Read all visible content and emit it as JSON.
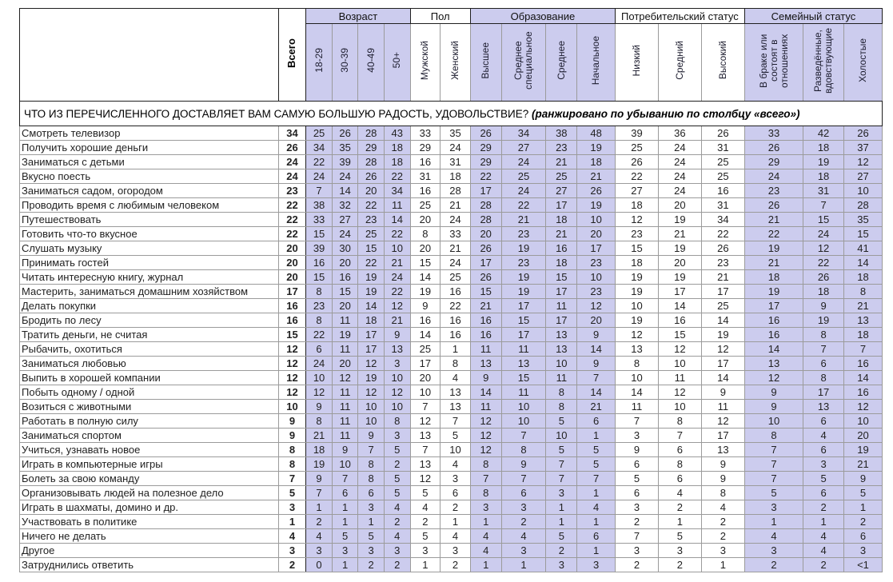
{
  "colors": {
    "shaded_column_bg": "#ccccee",
    "grid_major": "#1f1f1f",
    "grid_minor": "#9b9b9b"
  },
  "chart_data": {
    "type": "table",
    "title": "ЧТО ИЗ ПЕРЕЧИСЛЕННОГО ДОСТАВЛЯЕТ ВАМ САМУЮ БОЛЬШУЮ РАДОСТЬ, УДОВОЛЬСТВИЕ?",
    "title_note": "(ранжировано по убыванию по столбцу «всего»)",
    "total_header": "Всего",
    "groups": [
      {
        "label": "Возраст",
        "shaded": true,
        "columns": [
          "18-29",
          "30-39",
          "40-49",
          "50+"
        ]
      },
      {
        "label": "Пол",
        "shaded": false,
        "columns": [
          "Мужской",
          "Женский"
        ]
      },
      {
        "label": "Образование",
        "shaded": true,
        "columns": [
          "Высшее",
          "Среднее специальное",
          "Среднее",
          "Начальное"
        ]
      },
      {
        "label": "Потребительский статус",
        "shaded": false,
        "columns": [
          "Низкий",
          "Средний",
          "Высокий"
        ]
      },
      {
        "label": "Семейный статус",
        "shaded": true,
        "columns": [
          "В браке или состоят в отношениях",
          "Разведённые, вдовствующие",
          "Холостые"
        ]
      }
    ],
    "rows": [
      {
        "label": "Смотреть телевизор",
        "total": 34,
        "values": [
          25,
          26,
          28,
          43,
          33,
          35,
          26,
          34,
          38,
          48,
          39,
          36,
          26,
          33,
          42,
          26
        ]
      },
      {
        "label": "Получить хорошие деньги",
        "total": 26,
        "values": [
          34,
          35,
          29,
          18,
          29,
          24,
          29,
          27,
          23,
          19,
          25,
          24,
          31,
          26,
          18,
          37
        ]
      },
      {
        "label": "Заниматься с детьми",
        "total": 24,
        "values": [
          22,
          39,
          28,
          18,
          16,
          31,
          29,
          24,
          21,
          18,
          26,
          24,
          25,
          29,
          19,
          12
        ]
      },
      {
        "label": "Вкусно поесть",
        "total": 24,
        "values": [
          24,
          24,
          26,
          22,
          31,
          18,
          22,
          25,
          25,
          21,
          22,
          24,
          25,
          24,
          18,
          27
        ]
      },
      {
        "label": "Заниматься садом, огородом",
        "total": 23,
        "values": [
          7,
          14,
          20,
          34,
          16,
          28,
          17,
          24,
          27,
          26,
          27,
          24,
          16,
          23,
          31,
          10
        ]
      },
      {
        "label": "Проводить время с любимым человеком",
        "total": 22,
        "values": [
          38,
          32,
          22,
          11,
          25,
          21,
          28,
          22,
          17,
          19,
          18,
          20,
          31,
          26,
          7,
          28
        ]
      },
      {
        "label": "Путешествовать",
        "total": 22,
        "values": [
          33,
          27,
          23,
          14,
          20,
          24,
          28,
          21,
          18,
          10,
          12,
          19,
          34,
          21,
          15,
          35
        ]
      },
      {
        "label": "Готовить что-то вкусное",
        "total": 22,
        "values": [
          15,
          24,
          25,
          22,
          8,
          33,
          20,
          23,
          21,
          20,
          23,
          21,
          22,
          22,
          24,
          15
        ]
      },
      {
        "label": "Слушать музыку",
        "total": 20,
        "values": [
          39,
          30,
          15,
          10,
          20,
          21,
          26,
          19,
          16,
          17,
          15,
          19,
          26,
          19,
          12,
          41
        ]
      },
      {
        "label": "Принимать гостей",
        "total": 20,
        "values": [
          16,
          20,
          22,
          21,
          15,
          24,
          17,
          23,
          18,
          23,
          18,
          20,
          23,
          21,
          22,
          14
        ]
      },
      {
        "label": "Читать интересную книгу, журнал",
        "total": 20,
        "values": [
          15,
          16,
          19,
          24,
          14,
          25,
          26,
          19,
          15,
          10,
          19,
          19,
          21,
          18,
          26,
          18
        ]
      },
      {
        "label": "Мастерить, заниматься домашним хозяйством",
        "total": 17,
        "values": [
          8,
          15,
          19,
          22,
          19,
          16,
          15,
          19,
          17,
          23,
          19,
          17,
          17,
          19,
          18,
          8
        ]
      },
      {
        "label": "Делать покупки",
        "total": 16,
        "values": [
          23,
          20,
          14,
          12,
          9,
          22,
          21,
          17,
          11,
          12,
          10,
          14,
          25,
          17,
          9,
          21
        ]
      },
      {
        "label": "Бродить по лесу",
        "total": 16,
        "values": [
          8,
          11,
          18,
          21,
          16,
          16,
          16,
          15,
          17,
          20,
          19,
          16,
          14,
          16,
          19,
          13
        ]
      },
      {
        "label": "Тратить деньги, не считая",
        "total": 15,
        "values": [
          22,
          19,
          17,
          9,
          14,
          16,
          16,
          17,
          13,
          9,
          12,
          15,
          19,
          16,
          8,
          18
        ]
      },
      {
        "label": "Рыбачить, охотиться",
        "total": 12,
        "values": [
          6,
          11,
          17,
          13,
          25,
          1,
          11,
          11,
          13,
          14,
          13,
          12,
          12,
          14,
          7,
          7
        ]
      },
      {
        "label": "Заниматься любовью",
        "total": 12,
        "values": [
          24,
          20,
          12,
          3,
          17,
          8,
          13,
          13,
          10,
          9,
          8,
          10,
          17,
          13,
          6,
          16
        ]
      },
      {
        "label": "Выпить в хорошей компании",
        "total": 12,
        "values": [
          10,
          12,
          19,
          10,
          20,
          4,
          9,
          15,
          11,
          7,
          10,
          11,
          14,
          12,
          8,
          14
        ]
      },
      {
        "label": "Побыть одному / одной",
        "total": 12,
        "values": [
          12,
          11,
          12,
          12,
          10,
          13,
          14,
          11,
          8,
          14,
          14,
          12,
          9,
          9,
          17,
          16
        ]
      },
      {
        "label": "Возиться с животными",
        "total": 10,
        "values": [
          9,
          11,
          10,
          10,
          7,
          13,
          11,
          10,
          8,
          21,
          11,
          10,
          11,
          9,
          13,
          12
        ]
      },
      {
        "label": "Работать в полную силу",
        "total": 9,
        "values": [
          8,
          11,
          10,
          8,
          12,
          7,
          12,
          10,
          5,
          6,
          7,
          8,
          12,
          10,
          6,
          10
        ]
      },
      {
        "label": "Заниматься спортом",
        "total": 9,
        "values": [
          21,
          11,
          9,
          3,
          13,
          5,
          12,
          7,
          10,
          1,
          3,
          7,
          17,
          8,
          4,
          20
        ]
      },
      {
        "label": "Учиться, узнавать новое",
        "total": 8,
        "values": [
          18,
          9,
          7,
          5,
          7,
          10,
          12,
          8,
          5,
          5,
          9,
          6,
          13,
          7,
          6,
          19
        ]
      },
      {
        "label": "Играть в компьютерные игры",
        "total": 8,
        "values": [
          19,
          10,
          8,
          2,
          13,
          4,
          8,
          9,
          7,
          5,
          6,
          8,
          9,
          7,
          3,
          21
        ]
      },
      {
        "label": "Болеть за свою команду",
        "total": 7,
        "values": [
          9,
          7,
          8,
          5,
          12,
          3,
          7,
          7,
          7,
          7,
          5,
          6,
          9,
          7,
          5,
          9
        ]
      },
      {
        "label": "Организовывать людей на полезное дело",
        "total": 5,
        "values": [
          7,
          6,
          6,
          5,
          5,
          6,
          8,
          6,
          3,
          1,
          6,
          4,
          8,
          5,
          6,
          5
        ]
      },
      {
        "label": "Играть в шахматы, домино и др.",
        "total": 3,
        "values": [
          1,
          1,
          3,
          4,
          4,
          2,
          3,
          3,
          1,
          4,
          3,
          2,
          4,
          3,
          2,
          1
        ]
      },
      {
        "label": "Участвовать в политике",
        "total": 1,
        "values": [
          2,
          1,
          1,
          2,
          2,
          1,
          1,
          2,
          1,
          1,
          2,
          1,
          2,
          1,
          1,
          2
        ]
      },
      {
        "label": "Ничего не делать",
        "total": 4,
        "values": [
          4,
          5,
          5,
          4,
          5,
          4,
          4,
          4,
          5,
          6,
          7,
          5,
          2,
          4,
          4,
          6
        ]
      },
      {
        "label": "Другое",
        "total": 3,
        "values": [
          3,
          3,
          3,
          3,
          3,
          3,
          4,
          3,
          2,
          1,
          3,
          3,
          3,
          3,
          4,
          3
        ]
      },
      {
        "label": "Затруднились ответить",
        "total": 2,
        "values": [
          0,
          1,
          2,
          2,
          1,
          2,
          1,
          1,
          3,
          3,
          2,
          2,
          1,
          2,
          2,
          "<1"
        ]
      }
    ]
  }
}
